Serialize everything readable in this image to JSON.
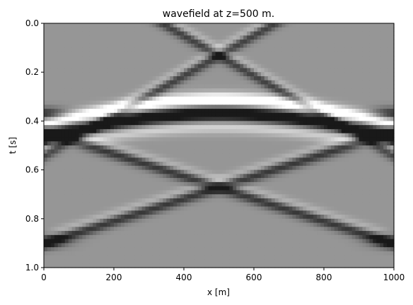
{
  "chart_data": {
    "type": "heatmap",
    "title": "wavefield at z=500 m.",
    "xlabel": "x [m]",
    "ylabel": "t [s]",
    "xlim": [
      0,
      1000
    ],
    "ylim": [
      1.0,
      0.0
    ],
    "y_inverted": true,
    "colormap": "gray",
    "grid": false,
    "x_ticks": [
      {
        "value": 0,
        "label": "0"
      },
      {
        "value": 200,
        "label": "200"
      },
      {
        "value": 400,
        "label": "400"
      },
      {
        "value": 600,
        "label": "600"
      },
      {
        "value": 800,
        "label": "800"
      },
      {
        "value": 1000,
        "label": "1000"
      }
    ],
    "y_ticks": [
      {
        "value": 0.0,
        "label": "0.0"
      },
      {
        "value": 0.2,
        "label": "0.2"
      },
      {
        "value": 0.4,
        "label": "0.4"
      },
      {
        "value": 0.6,
        "label": "0.6"
      },
      {
        "value": 0.8,
        "label": "0.8"
      },
      {
        "value": 1.0,
        "label": "1.0"
      }
    ],
    "grid_shape": [
      60,
      100
    ],
    "events": [
      {
        "kind": "hyperbola",
        "x0": 500,
        "t0": 0.37,
        "velocity": 1800,
        "amplitude": -1.0,
        "width": 0.028
      },
      {
        "kind": "hyperbola",
        "x0": 500,
        "t0": 0.315,
        "velocity": 1800,
        "amplitude": 1.0,
        "width": 0.02
      },
      {
        "kind": "hyperbola",
        "x0": 500,
        "t0": 0.42,
        "velocity": 1800,
        "amplitude": 0.5,
        "width": 0.02
      },
      {
        "kind": "x_crossing",
        "x0": 500,
        "t0": 0.13,
        "slope": 0.00082,
        "amplitude": -0.55,
        "width": 0.018
      },
      {
        "kind": "x_crossing",
        "x0": 500,
        "t0": 0.105,
        "slope": 0.00082,
        "amplitude": 0.3,
        "width": 0.015
      },
      {
        "kind": "v_crossing",
        "x0": 500,
        "t0": 0.67,
        "slope": 0.00046,
        "amplitude": -0.6,
        "width": 0.018
      },
      {
        "kind": "v_crossing",
        "x0": 500,
        "t0": 0.645,
        "slope": 0.00046,
        "amplitude": 0.3,
        "width": 0.015
      },
      {
        "kind": "edge_band",
        "t0": 0.46,
        "amplitude": -1.0,
        "width": 0.03
      },
      {
        "kind": "edge_band",
        "t0": 0.89,
        "amplitude": -0.6,
        "width": 0.02
      },
      {
        "kind": "edge_band",
        "t0": 0.37,
        "amplitude": -0.6,
        "width": 0.018
      }
    ]
  }
}
